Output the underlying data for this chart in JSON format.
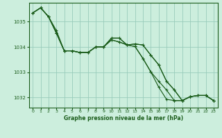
{
  "background_color": "#cceedd",
  "plot_bg_color": "#cceedd",
  "grid_color": "#99ccbb",
  "line_color": "#1a5c1a",
  "marker_color": "#1a5c1a",
  "xlabel": "Graphe pression niveau de la mer (hPa)",
  "ylim": [
    1031.6,
    1035.75
  ],
  "xlim": [
    -0.5,
    23.5
  ],
  "yticks": [
    1032,
    1033,
    1034,
    1035
  ],
  "xticks": [
    0,
    1,
    2,
    3,
    4,
    5,
    6,
    7,
    8,
    9,
    10,
    11,
    12,
    13,
    14,
    15,
    16,
    17,
    18,
    19,
    20,
    21,
    22,
    23
  ],
  "series": [
    [
      1035.35,
      1035.55,
      1035.2,
      1034.55,
      1033.85,
      1033.85,
      1033.78,
      1033.78,
      1034.0,
      1034.0,
      1034.35,
      1034.35,
      1034.08,
      1034.12,
      1034.08,
      1033.68,
      1033.3,
      1032.65,
      1032.3,
      1031.88,
      1032.03,
      1032.08,
      1032.08,
      1031.88
    ],
    [
      1035.35,
      1035.55,
      1035.2,
      1034.55,
      1033.85,
      1033.85,
      1033.78,
      1033.78,
      1034.0,
      1034.0,
      1034.28,
      1034.2,
      1034.08,
      1034.02,
      1033.55,
      1033.02,
      1032.42,
      1031.93,
      1031.88,
      1031.88,
      1032.03,
      1032.08,
      1032.08,
      1031.88
    ],
    [
      1035.35,
      1035.55,
      1035.2,
      1034.55,
      1033.85,
      1033.85,
      1033.78,
      1033.78,
      1034.0,
      1034.0,
      1034.28,
      1034.2,
      1034.08,
      1034.02,
      1033.55,
      1033.02,
      1032.65,
      1032.3,
      1031.88,
      1031.88,
      1032.03,
      1032.08,
      1032.08,
      1031.88
    ],
    [
      1035.35,
      1035.55,
      1035.2,
      1034.65,
      1033.85,
      1033.85,
      1033.78,
      1033.78,
      1034.0,
      1034.0,
      1034.35,
      1034.35,
      1034.08,
      1034.12,
      1034.08,
      1033.68,
      1033.3,
      1032.65,
      1032.3,
      1031.88,
      1032.03,
      1032.08,
      1032.08,
      1031.88
    ]
  ]
}
